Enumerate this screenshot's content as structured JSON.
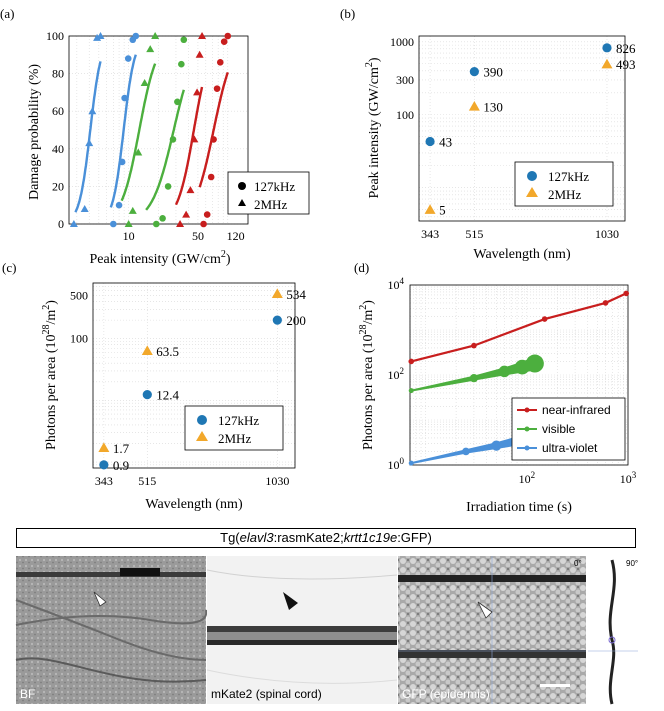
{
  "chart_data": [
    {
      "panel": "(a)",
      "type": "line",
      "xscale": "log",
      "xlabel_main": "Peak intensity (GW/cm",
      "xlabel_sup": "2",
      "xlabel_end": ")",
      "ylabel": "Damage probability (%)",
      "xlim": [
        2.5,
        160
      ],
      "ylim": [
        0,
        100
      ],
      "yticks": [
        0,
        20,
        40,
        60,
        80,
        100
      ],
      "xtick_labels": [
        {
          "v": 10,
          "t": "10"
        },
        {
          "v": 50,
          "t": "50"
        },
        {
          "v": 120,
          "t": "120"
        }
      ],
      "legend": [
        {
          "marker": "circle",
          "label": "127kHz"
        },
        {
          "marker": "triangle",
          "label": "2MHz"
        }
      ],
      "series": [
        {
          "name": "ultra-violet 2MHz",
          "color": "#4a90d9",
          "marker": "triangle",
          "points": [
            [
              2.8,
              0
            ],
            [
              3.6,
              8
            ],
            [
              4.0,
              43
            ],
            [
              4.3,
              60
            ],
            [
              4.8,
              99
            ],
            [
              5.2,
              100
            ]
          ],
          "curve": {
            "x0": 4.1,
            "k": 18,
            "xmin": 2.9,
            "xmax": 5.2
          }
        },
        {
          "name": "ultra-violet 127kHz",
          "color": "#4a90d9",
          "marker": "circle",
          "points": [
            [
              7.0,
              0
            ],
            [
              8.0,
              10
            ],
            [
              8.6,
              33
            ],
            [
              9.1,
              67
            ],
            [
              9.9,
              88
            ],
            [
              11.0,
              98
            ],
            [
              11.8,
              100
            ]
          ],
          "curve": {
            "x0": 8.9,
            "k": 18,
            "xmin": 6.6,
            "xmax": 11.8
          }
        },
        {
          "name": "visible 2MHz",
          "color": "#4caf3e",
          "marker": "triangle",
          "points": [
            [
              10,
              0
            ],
            [
              11,
              7
            ],
            [
              12.5,
              38
            ],
            [
              14.5,
              75
            ],
            [
              16.5,
              93
            ],
            [
              18.5,
              100
            ]
          ],
          "curve": {
            "x0": 12.8,
            "k": 11,
            "xmin": 8.5,
            "xmax": 18.5
          }
        },
        {
          "name": "visible 127kHz",
          "color": "#4caf3e",
          "marker": "circle",
          "points": [
            [
              19,
              0
            ],
            [
              22,
              3
            ],
            [
              25,
              20
            ],
            [
              28,
              45
            ],
            [
              31,
              65
            ],
            [
              34,
              85
            ],
            [
              36,
              98
            ]
          ],
          "curve": {
            "x0": 28.5,
            "k": 9,
            "xmin": 15,
            "xmax": 36
          }
        },
        {
          "name": "near-infrared 2MHz",
          "color": "#c81e1e",
          "marker": "triangle",
          "points": [
            [
              33,
              0
            ],
            [
              38,
              5
            ],
            [
              42,
              18
            ],
            [
              46,
              45
            ],
            [
              49,
              70
            ],
            [
              52,
              90
            ],
            [
              55,
              100
            ]
          ],
          "curve": {
            "x0": 45.5,
            "k": 12,
            "xmin": 30,
            "xmax": 55
          }
        },
        {
          "name": "near-infrared 127kHz",
          "color": "#c81e1e",
          "marker": "circle",
          "points": [
            [
              57,
              0
            ],
            [
              62,
              5
            ],
            [
              68,
              25
            ],
            [
              72,
              45
            ],
            [
              78,
              72
            ],
            [
              84,
              86
            ],
            [
              92,
              97
            ],
            [
              100,
              100
            ]
          ],
          "curve": {
            "x0": 72,
            "k": 10,
            "xmin": 52,
            "xmax": 100
          }
        }
      ]
    },
    {
      "panel": "(b)",
      "type": "scatter",
      "yscale": "log",
      "xlabel": "Wavelength (nm)",
      "ylabel_main": "Peak intensity (GW/cm",
      "ylabel_sup": "2",
      "ylabel_end": ")",
      "xlim": [
        300,
        1100
      ],
      "ylim": [
        3.5,
        1200
      ],
      "xticks": [
        343,
        515,
        1030
      ],
      "yticks": [
        {
          "v": 100,
          "t": "100"
        },
        {
          "v": 300,
          "t": "300"
        },
        {
          "v": 1000,
          "t": "1000"
        }
      ],
      "legend": [
        {
          "marker": "circle",
          "color": "#1f77b4",
          "label": "127kHz"
        },
        {
          "marker": "triangle",
          "color": "#f2a82b",
          "label": "2MHz"
        }
      ],
      "series": [
        {
          "name": "127kHz",
          "marker": "circle",
          "color": "#1f77b4",
          "x": [
            343,
            515,
            1030
          ],
          "y": [
            43,
            390,
            826
          ],
          "labels": [
            "43",
            "390",
            "826"
          ]
        },
        {
          "name": "2MHz",
          "marker": "triangle",
          "color": "#f2a82b",
          "x": [
            343,
            515,
            1030
          ],
          "y": [
            5,
            130,
            493
          ],
          "labels": [
            "5",
            "130",
            "493"
          ]
        }
      ]
    },
    {
      "panel": "(c)",
      "type": "scatter",
      "yscale": "log",
      "xlabel": "Wavelength (nm)",
      "ylabel_main": "Photons per area (10",
      "ylabel_sup": "28",
      "ylabel_end": "/m",
      "ylabel_sup2": "2",
      "ylabel_close": ")",
      "xlim": [
        300,
        1100
      ],
      "ylim": [
        0.8,
        800
      ],
      "xticks": [
        343,
        515,
        1030
      ],
      "yticks": [
        {
          "v": 100,
          "t": "100"
        },
        {
          "v": 500,
          "t": "500"
        }
      ],
      "legend": [
        {
          "marker": "circle",
          "color": "#1f77b4",
          "label": "127kHz"
        },
        {
          "marker": "triangle",
          "color": "#f2a82b",
          "label": "2MHz"
        }
      ],
      "series": [
        {
          "name": "127kHz",
          "marker": "circle",
          "color": "#1f77b4",
          "x": [
            343,
            515,
            1030
          ],
          "y": [
            0.9,
            12.4,
            200
          ],
          "labels": [
            "0.9",
            "12.4",
            "200"
          ]
        },
        {
          "name": "2MHz",
          "marker": "triangle",
          "color": "#f2a82b",
          "x": [
            343,
            515,
            1030
          ],
          "y": [
            1.7,
            63.5,
            534
          ],
          "labels": [
            "1.7",
            "63.5",
            "534"
          ]
        }
      ]
    },
    {
      "panel": "(d)",
      "type": "line",
      "xscale": "log",
      "yscale": "log",
      "xlabel": "Irradiation time (s)",
      "ylabel_main": "Photons per area (10",
      "ylabel_sup": "28",
      "ylabel_end": "/m",
      "ylabel_sup2": "2",
      "ylabel_close": ")",
      "xlim": [
        7,
        1000
      ],
      "ylim": [
        1,
        10000
      ],
      "xticks": [
        {
          "v": 100,
          "b": "10",
          "e": "2"
        },
        {
          "v": 1000,
          "b": "10",
          "e": "3"
        }
      ],
      "yticks": [
        {
          "v": 1,
          "b": "10",
          "e": "0"
        },
        {
          "v": 100,
          "b": "10",
          "e": "2"
        },
        {
          "v": 10000,
          "b": "10",
          "e": "4"
        }
      ],
      "legend": [
        {
          "label": "near-infrared",
          "color": "#c81e1e"
        },
        {
          "label": "visible",
          "color": "#4caf3e"
        },
        {
          "label": "ultra-violet",
          "color": "#4a90d9"
        }
      ],
      "series": [
        {
          "name": "near-infrared",
          "color": "#c81e1e",
          "width": "thin",
          "x": [
            7.2,
            30,
            150,
            600,
            960
          ],
          "y": [
            200,
            450,
            1750,
            4000,
            6500
          ]
        },
        {
          "name": "visible",
          "color": "#4caf3e",
          "width": "growing",
          "x": [
            7.2,
            30,
            60,
            90,
            120
          ],
          "y": [
            45,
            85,
            120,
            150,
            180
          ]
        },
        {
          "name": "ultra-violet",
          "color": "#4a90d9",
          "width": "growing",
          "x": [
            7.2,
            25,
            50,
            80,
            110,
            120
          ],
          "y": [
            1.1,
            2.0,
            2.7,
            3.4,
            4.2,
            4.6
          ]
        }
      ]
    }
  ],
  "microscopy": {
    "title_prefix": "Tg(",
    "title_gene1": "elavl3",
    "title_mid": ":rasmKate2;",
    "title_gene2": "krtt1c19e",
    "title_suffix": ":GFP)",
    "panels": [
      {
        "label": "BF"
      },
      {
        "label": "mKate2 (spinal cord)"
      },
      {
        "label": "GFP (epidermis)"
      }
    ],
    "orthoview_angle_start": "0°",
    "orthoview_angle_end": "90°"
  }
}
